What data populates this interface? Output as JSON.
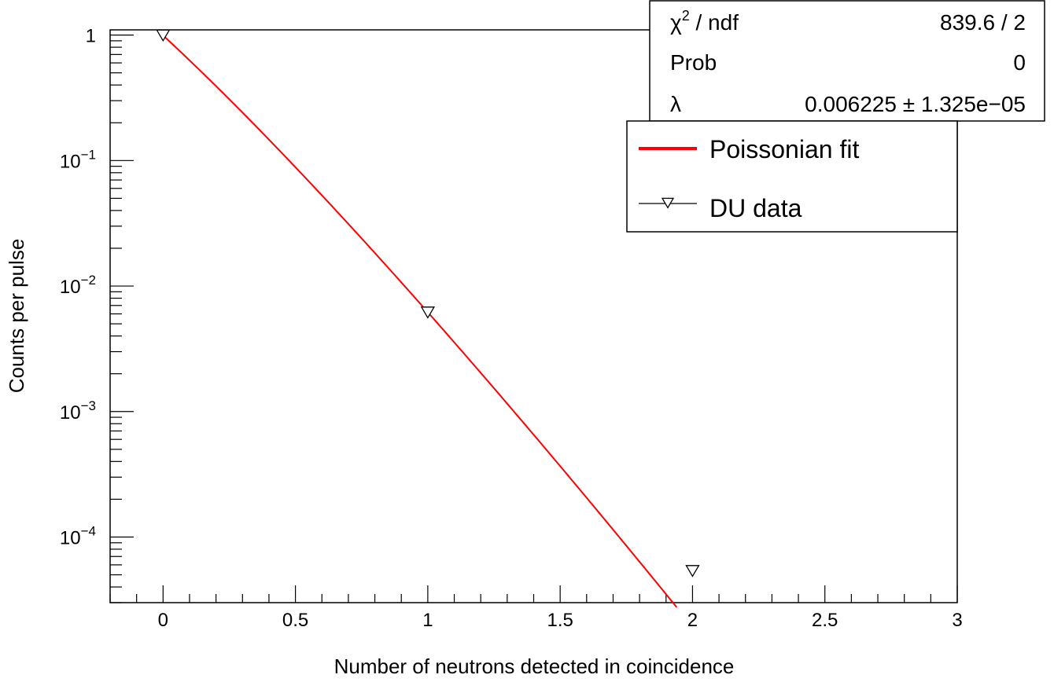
{
  "chart_data": {
    "type": "scatter",
    "xlabel": "Number of neutrons detected in coincidence",
    "ylabel": "Counts per pulse",
    "xlim": [
      -0.2,
      3
    ],
    "ylim": [
      3e-05,
      1.1
    ],
    "yscale": "log",
    "x_ticks": [
      "0",
      "0.5",
      "1",
      "1.5",
      "2",
      "2.5",
      "3"
    ],
    "y_ticks": [
      "1",
      "10^{-1}",
      "10^{-2}",
      "10^{-3}",
      "10^{-4}"
    ],
    "grid": false,
    "legend_placement": "top-right",
    "series": [
      {
        "name": "DU data",
        "kind": "points",
        "marker": "open-triangle-down",
        "color": "#000000",
        "x": [
          0,
          1,
          2
        ],
        "y": [
          1.0,
          0.0062,
          5.4e-05
        ]
      },
      {
        "name": "Poissonian fit",
        "kind": "function",
        "color": "#ff0000",
        "lambda": 0.006225,
        "x_range": [
          0,
          1.94
        ]
      }
    ],
    "stats_box": {
      "rows": [
        {
          "label_base": "χ",
          "label_sup": "2",
          "label_rest": " / ndf",
          "value": "839.6 / 2"
        },
        {
          "label_base": "Prob",
          "label_sup": "",
          "label_rest": "",
          "value": "0"
        },
        {
          "label_base": "λ",
          "label_sup": "",
          "label_rest": "",
          "value": "0.006225 ± 1.325e−05"
        }
      ]
    }
  }
}
